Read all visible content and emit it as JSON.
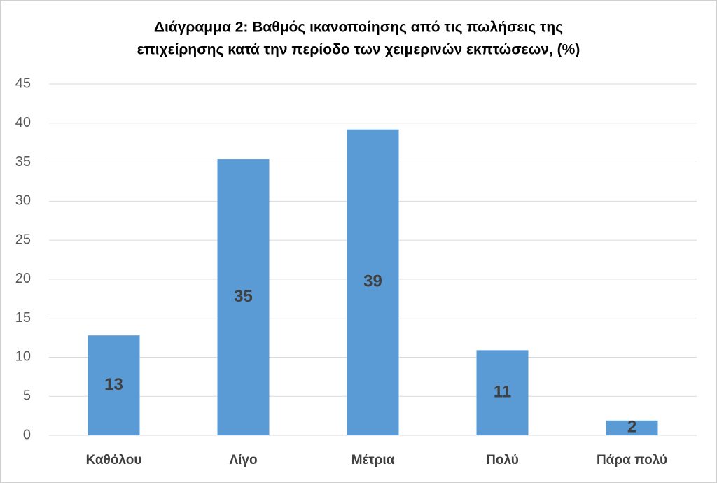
{
  "chart_data": {
    "type": "bar",
    "title": [
      "Διάγραμμα 2: Βαθμός ικανοποίησης από τις πωλήσεις της",
      "επιχείρησης κατά την περίοδο των χειμερινών εκπτώσεων, (%)"
    ],
    "categories": [
      "Καθόλου",
      "Λίγο",
      "Μέτρια",
      "Πολύ",
      "Πάρα πολύ"
    ],
    "values": [
      12.8,
      35.4,
      39.2,
      10.9,
      1.9
    ],
    "value_labels": [
      "13",
      "35",
      "39",
      "11",
      "2"
    ],
    "color": "#5b9bd5",
    "ylim": [
      0,
      45
    ],
    "yticks": [
      0,
      5,
      10,
      15,
      20,
      25,
      30,
      35,
      40,
      45
    ],
    "grid": true
  }
}
